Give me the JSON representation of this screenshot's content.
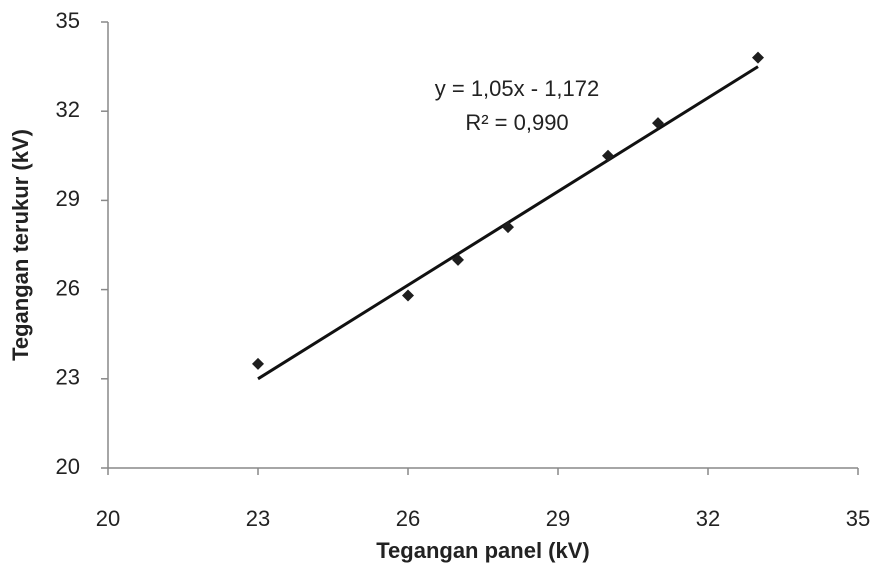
{
  "chart_data": {
    "type": "scatter",
    "x_label": "Tegangan panel (kV)",
    "y_label": "Tegangan terukur (kV)",
    "x": [
      23,
      26,
      27,
      28,
      30,
      31,
      33
    ],
    "values": [
      23.5,
      25.8,
      27.0,
      28.1,
      30.5,
      31.6,
      33.8
    ],
    "color": "#1e1e1e",
    "trendline": {
      "x": [
        23,
        33
      ],
      "values": [
        23.0,
        33.5
      ],
      "color": "#111111",
      "equation": "y = 1,05x - 1,172",
      "r_squared": "R² = 0,990"
    },
    "xlim": [
      20,
      35
    ],
    "xticks": [
      20,
      23,
      26,
      29,
      32,
      35
    ],
    "ylim": [
      20,
      35
    ],
    "yticks": [
      20,
      23,
      26,
      29,
      32,
      35
    ],
    "grid": false
  }
}
